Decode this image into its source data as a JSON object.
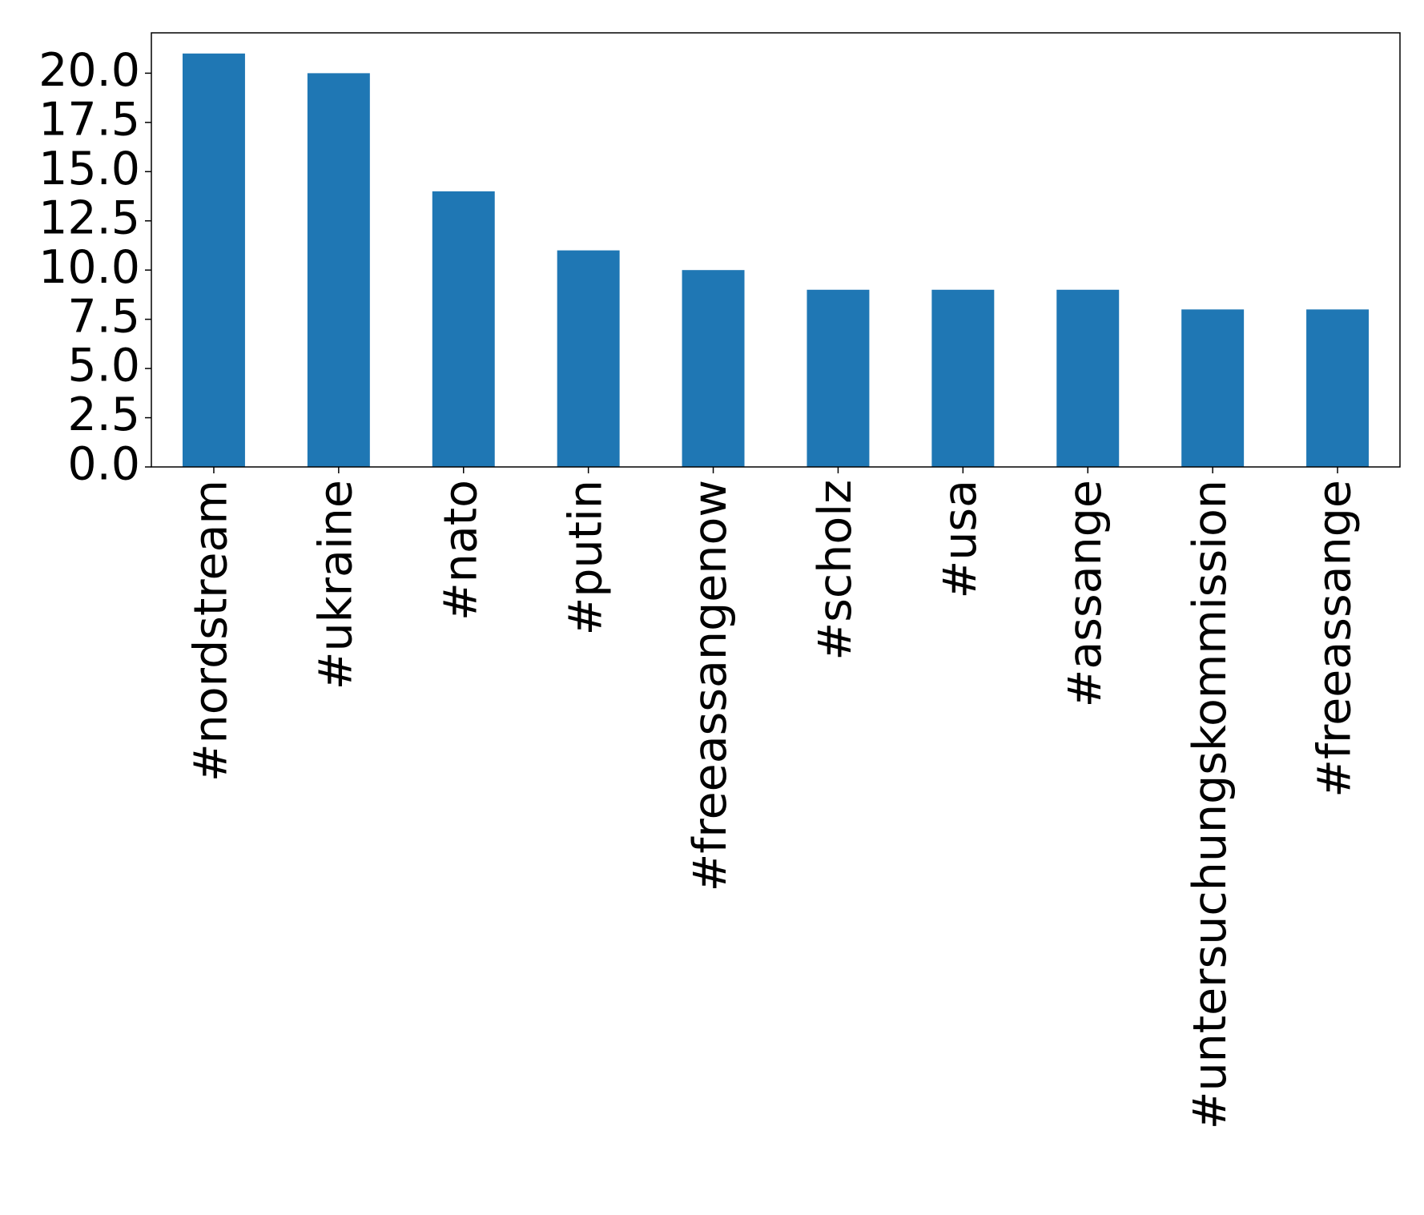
{
  "chart_data": {
    "type": "bar",
    "categories": [
      "#nordstream",
      "#ukraine",
      "#nato",
      "#putin",
      "#freeassangenow",
      "#scholz",
      "#usa",
      "#assange",
      "#untersuchungskommission",
      "#freeassange"
    ],
    "values": [
      21,
      20,
      14,
      11,
      10,
      9,
      9,
      9,
      8,
      8
    ],
    "color": "#1f77b4",
    "ylim": [
      0,
      22.05
    ],
    "yticks": [
      {
        "value": 0,
        "label": "0.0"
      },
      2.5,
      {
        "value": 5,
        "label": "5.0"
      },
      7.5,
      {
        "value": 10,
        "label": "10.0"
      },
      12.5,
      {
        "value": 15,
        "label": "15.0"
      },
      17.5,
      {
        "value": 20,
        "label": "20.0"
      }
    ],
    "grid": false
  }
}
